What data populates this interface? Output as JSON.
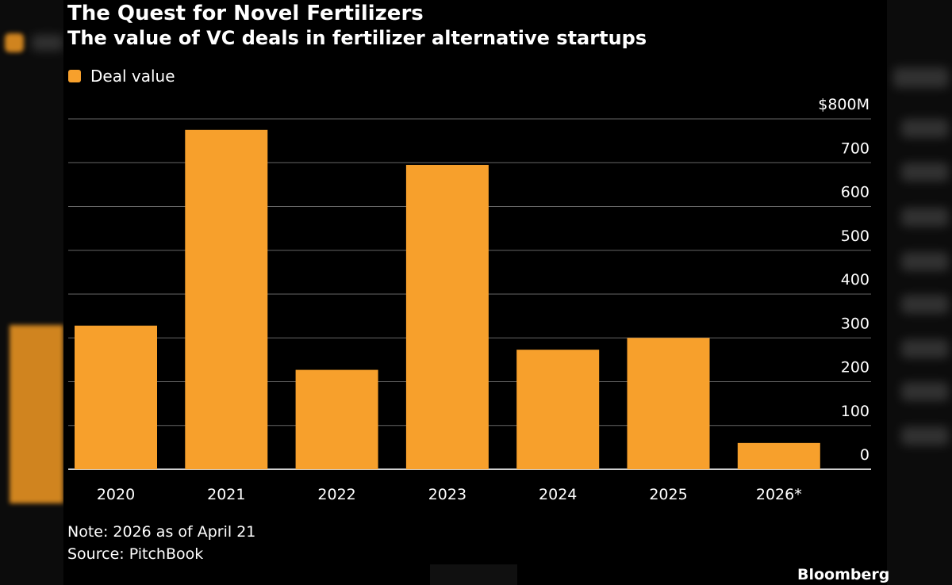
{
  "title": "The Quest for Novel Fertilizers",
  "subtitle": "The value of VC deals in fertilizer alternative startups",
  "note": "Note: 2026 as of April 21",
  "source": "Source: PitchBook",
  "brand": "Bloomberg",
  "colors": {
    "bar": "#f7a02c",
    "grid": "#666666",
    "background": "#000000"
  },
  "chart_data": {
    "type": "bar",
    "categories": [
      "2020",
      "2021",
      "2022",
      "2023",
      "2024",
      "2025",
      "2026*"
    ],
    "series": [
      {
        "name": "Deal value",
        "values": [
          328,
          775,
          227,
          695,
          273,
          300,
          60
        ]
      }
    ],
    "ylim": [
      0,
      800
    ],
    "y_ticks": [
      0,
      100,
      200,
      300,
      400,
      500,
      600,
      700,
      800
    ],
    "y_tick_labels": [
      "0",
      "100",
      "200",
      "300",
      "400",
      "500",
      "600",
      "700",
      "$800M"
    ],
    "xlabel": "",
    "ylabel": "",
    "legend_position": "top-left",
    "grid": true
  }
}
